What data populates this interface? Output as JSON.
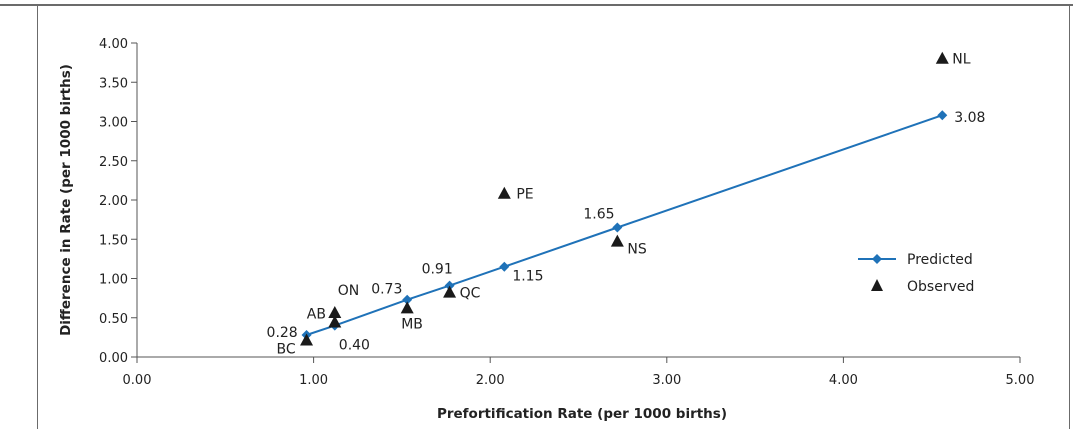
{
  "chart_data": {
    "type": "scatter",
    "xlabel": "Prefortification Rate (per 1000 births)",
    "ylabel": "Difference in Rate (per 1000 births)",
    "xlim": [
      0,
      5
    ],
    "ylim": [
      0,
      4
    ],
    "x_ticks": [
      "0.00",
      "1.00",
      "2.00",
      "3.00",
      "4.00",
      "5.00"
    ],
    "y_ticks": [
      "0.00",
      "0.50",
      "1.00",
      "1.50",
      "2.00",
      "2.50",
      "3.00",
      "3.50",
      "4.00"
    ],
    "grid": false,
    "legend_position": "right",
    "colors": {
      "predicted": "#1f72b8",
      "observed": "#1a1a1a",
      "axis": "#555555"
    },
    "series": [
      {
        "name": "Predicted",
        "style": "line-with-diamond-markers",
        "points": [
          {
            "x": 0.96,
            "y": 0.28,
            "label": "0.28"
          },
          {
            "x": 1.12,
            "y": 0.4,
            "label": "0.40"
          },
          {
            "x": 1.53,
            "y": 0.73,
            "label": "0.73"
          },
          {
            "x": 1.77,
            "y": 0.91,
            "label": "0.91"
          },
          {
            "x": 2.08,
            "y": 1.15,
            "label": "1.15"
          },
          {
            "x": 2.72,
            "y": 1.65,
            "label": "1.65"
          },
          {
            "x": 4.56,
            "y": 3.08,
            "label": "3.08"
          }
        ]
      },
      {
        "name": "Observed",
        "style": "triangle-markers",
        "points": [
          {
            "x": 0.96,
            "y": 0.21,
            "label": "BC"
          },
          {
            "x": 1.12,
            "y": 0.44,
            "label": "AB"
          },
          {
            "x": 1.12,
            "y": 0.56,
            "label": "ON"
          },
          {
            "x": 1.53,
            "y": 0.62,
            "label": "MB"
          },
          {
            "x": 1.77,
            "y": 0.82,
            "label": "QC"
          },
          {
            "x": 2.08,
            "y": 2.08,
            "label": "PE"
          },
          {
            "x": 2.72,
            "y": 1.47,
            "label": "NS"
          },
          {
            "x": 4.56,
            "y": 3.8,
            "label": "NL"
          }
        ]
      }
    ]
  }
}
